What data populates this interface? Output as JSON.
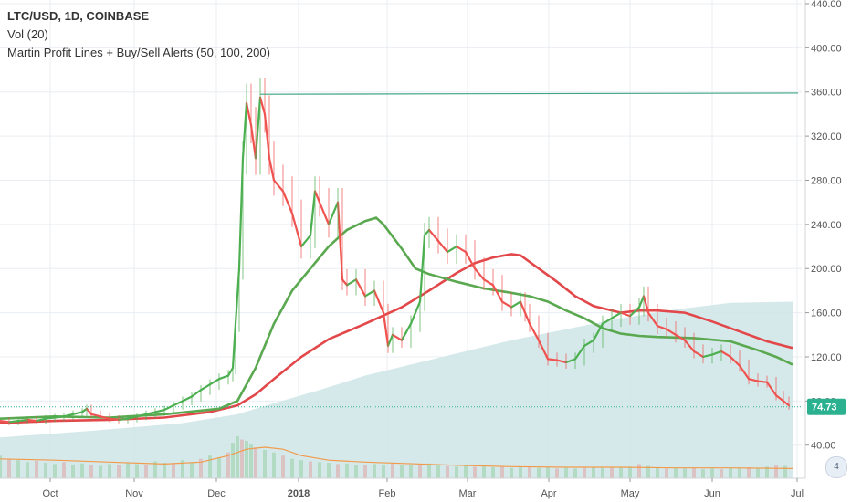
{
  "legend": {
    "symbol": "LTC/USD, 1D, COINBASE",
    "volume": "Vol (20)",
    "indicator": "Martin Profit Lines + Buy/Sell Alerts (50, 100, 200)"
  },
  "badge": "4",
  "colors": {
    "bull": "#4caf50",
    "bear": "#ef5350",
    "ma_fast": "#5aa84f",
    "ma_slow": "#e2474a",
    "area": "#cfe5e6",
    "resistance": "#3fa483",
    "vol_avg": "#f29a4a",
    "last_price_bg": "#2bb190",
    "grid": "#e9edf2"
  },
  "chart_data": {
    "type": "candlestick",
    "title": "LTC/USD, 1D, COINBASE",
    "ylim": [
      10,
      440
    ],
    "y_ticks": [
      40,
      80,
      120,
      160,
      200,
      240,
      280,
      320,
      360,
      400,
      440
    ],
    "y_tick_labels": [
      "40.00",
      "80.00",
      "120.00",
      "160.00",
      "200.00",
      "240.00",
      "280.00",
      "320.00",
      "360.00",
      "400.00",
      "440.00"
    ],
    "x_tick_labels": [
      "Oct",
      "Nov",
      "Dec",
      "2018",
      "Feb",
      "Mar",
      "Apr",
      "May",
      "Jun",
      "Jul"
    ],
    "last_price": 74.73,
    "last_price_label": "74.73",
    "resistance_level": 358,
    "series": [
      {
        "key": "close",
        "points": [
          [
            0,
            62
          ],
          [
            10,
            61
          ],
          [
            20,
            62
          ],
          [
            30,
            63
          ],
          [
            40,
            62
          ],
          [
            50,
            64
          ],
          [
            60,
            65
          ],
          [
            70,
            66
          ],
          [
            80,
            68
          ],
          [
            90,
            70
          ],
          [
            95,
            73
          ],
          [
            100,
            68
          ],
          [
            110,
            66
          ],
          [
            120,
            64
          ],
          [
            130,
            63
          ],
          [
            140,
            64
          ],
          [
            150,
            66
          ],
          [
            160,
            68
          ],
          [
            170,
            70
          ],
          [
            180,
            72
          ],
          [
            190,
            76
          ],
          [
            200,
            80
          ],
          [
            210,
            84
          ],
          [
            220,
            90
          ],
          [
            230,
            95
          ],
          [
            240,
            100
          ],
          [
            250,
            103
          ],
          [
            255,
            110
          ],
          [
            258,
            150
          ],
          [
            262,
            200
          ],
          [
            266,
            300
          ],
          [
            270,
            350
          ],
          [
            275,
            330
          ],
          [
            280,
            300
          ],
          [
            285,
            355
          ],
          [
            290,
            340
          ],
          [
            295,
            300
          ],
          [
            300,
            280
          ],
          [
            310,
            270
          ],
          [
            320,
            250
          ],
          [
            330,
            220
          ],
          [
            340,
            230
          ],
          [
            345,
            270
          ],
          [
            350,
            260
          ],
          [
            360,
            240
          ],
          [
            370,
            260
          ],
          [
            375,
            190
          ],
          [
            380,
            185
          ],
          [
            390,
            190
          ],
          [
            400,
            175
          ],
          [
            410,
            180
          ],
          [
            420,
            160
          ],
          [
            425,
            130
          ],
          [
            430,
            140
          ],
          [
            440,
            135
          ],
          [
            450,
            150
          ],
          [
            460,
            170
          ],
          [
            465,
            230
          ],
          [
            470,
            235
          ],
          [
            480,
            225
          ],
          [
            490,
            215
          ],
          [
            500,
            220
          ],
          [
            510,
            215
          ],
          [
            520,
            200
          ],
          [
            530,
            190
          ],
          [
            540,
            185
          ],
          [
            550,
            170
          ],
          [
            560,
            165
          ],
          [
            570,
            170
          ],
          [
            575,
            160
          ],
          [
            580,
            150
          ],
          [
            590,
            135
          ],
          [
            600,
            118
          ],
          [
            610,
            117
          ],
          [
            620,
            115
          ],
          [
            630,
            118
          ],
          [
            640,
            130
          ],
          [
            650,
            135
          ],
          [
            660,
            150
          ],
          [
            670,
            155
          ],
          [
            680,
            160
          ],
          [
            690,
            157
          ],
          [
            700,
            165
          ],
          [
            705,
            175
          ],
          [
            710,
            160
          ],
          [
            720,
            148
          ],
          [
            730,
            145
          ],
          [
            740,
            140
          ],
          [
            750,
            135
          ],
          [
            760,
            125
          ],
          [
            770,
            120
          ],
          [
            780,
            122
          ],
          [
            790,
            125
          ],
          [
            800,
            120
          ],
          [
            810,
            112
          ],
          [
            820,
            100
          ],
          [
            830,
            98
          ],
          [
            840,
            97
          ],
          [
            850,
            85
          ],
          [
            858,
            80
          ],
          [
            864,
            76
          ]
        ]
      },
      {
        "key": "ma50",
        "points": [
          [
            0,
            64
          ],
          [
            60,
            66
          ],
          [
            120,
            65
          ],
          [
            180,
            68
          ],
          [
            240,
            73
          ],
          [
            260,
            80
          ],
          [
            280,
            110
          ],
          [
            300,
            150
          ],
          [
            320,
            180
          ],
          [
            340,
            200
          ],
          [
            360,
            220
          ],
          [
            380,
            235
          ],
          [
            400,
            243
          ],
          [
            412,
            246
          ],
          [
            420,
            240
          ],
          [
            440,
            218
          ],
          [
            455,
            200
          ],
          [
            470,
            195
          ],
          [
            500,
            188
          ],
          [
            530,
            182
          ],
          [
            560,
            178
          ],
          [
            580,
            175
          ],
          [
            600,
            170
          ],
          [
            620,
            162
          ],
          [
            640,
            155
          ],
          [
            660,
            146
          ],
          [
            680,
            141
          ],
          [
            700,
            139
          ],
          [
            720,
            138
          ],
          [
            760,
            137
          ],
          [
            800,
            134
          ],
          [
            830,
            126
          ],
          [
            850,
            120
          ],
          [
            868,
            113
          ]
        ]
      },
      {
        "key": "ma100",
        "points": [
          [
            0,
            60
          ],
          [
            60,
            62
          ],
          [
            120,
            63
          ],
          [
            180,
            65
          ],
          [
            230,
            70
          ],
          [
            260,
            76
          ],
          [
            280,
            86
          ],
          [
            300,
            100
          ],
          [
            330,
            120
          ],
          [
            360,
            136
          ],
          [
            400,
            150
          ],
          [
            440,
            165
          ],
          [
            470,
            180
          ],
          [
            500,
            196
          ],
          [
            520,
            205
          ],
          [
            540,
            210
          ],
          [
            560,
            213
          ],
          [
            570,
            212
          ],
          [
            590,
            200
          ],
          [
            610,
            188
          ],
          [
            630,
            175
          ],
          [
            650,
            166
          ],
          [
            680,
            160
          ],
          [
            700,
            162
          ],
          [
            720,
            162
          ],
          [
            750,
            160
          ],
          [
            780,
            152
          ],
          [
            810,
            143
          ],
          [
            840,
            134
          ],
          [
            868,
            128
          ]
        ]
      },
      {
        "key": "area",
        "points": [
          [
            0,
            47
          ],
          [
            100,
            53
          ],
          [
            200,
            60
          ],
          [
            260,
            68
          ],
          [
            300,
            78
          ],
          [
            350,
            90
          ],
          [
            400,
            103
          ],
          [
            450,
            113
          ],
          [
            500,
            123
          ],
          [
            560,
            135
          ],
          [
            620,
            145
          ],
          [
            680,
            155
          ],
          [
            740,
            163
          ],
          [
            800,
            169
          ],
          [
            868,
            170
          ]
        ]
      },
      {
        "key": "volume_avg",
        "points": [
          [
            0,
            30
          ],
          [
            60,
            28
          ],
          [
            120,
            25
          ],
          [
            180,
            22
          ],
          [
            220,
            25
          ],
          [
            250,
            35
          ],
          [
            270,
            45
          ],
          [
            290,
            48
          ],
          [
            310,
            45
          ],
          [
            330,
            35
          ],
          [
            360,
            28
          ],
          [
            400,
            25
          ],
          [
            440,
            23
          ],
          [
            500,
            20
          ],
          [
            560,
            18
          ],
          [
            620,
            17
          ],
          [
            680,
            17
          ],
          [
            740,
            16
          ],
          [
            800,
            16
          ],
          [
            868,
            15
          ]
        ]
      }
    ],
    "volume": [
      [
        0,
        35
      ],
      [
        10,
        30
      ],
      [
        20,
        28
      ],
      [
        30,
        25
      ],
      [
        40,
        27
      ],
      [
        50,
        24
      ],
      [
        60,
        22
      ],
      [
        70,
        25
      ],
      [
        80,
        20
      ],
      [
        90,
        23
      ],
      [
        100,
        21
      ],
      [
        110,
        19
      ],
      [
        120,
        22
      ],
      [
        130,
        20
      ],
      [
        140,
        24
      ],
      [
        150,
        22
      ],
      [
        160,
        21
      ],
      [
        170,
        26
      ],
      [
        180,
        24
      ],
      [
        190,
        22
      ],
      [
        200,
        28
      ],
      [
        210,
        25
      ],
      [
        220,
        30
      ],
      [
        230,
        35
      ],
      [
        240,
        32
      ],
      [
        250,
        40
      ],
      [
        255,
        55
      ],
      [
        260,
        65
      ],
      [
        265,
        60
      ],
      [
        270,
        58
      ],
      [
        275,
        52
      ],
      [
        280,
        48
      ],
      [
        290,
        44
      ],
      [
        300,
        40
      ],
      [
        310,
        35
      ],
      [
        320,
        30
      ],
      [
        330,
        28
      ],
      [
        340,
        26
      ],
      [
        350,
        25
      ],
      [
        360,
        24
      ],
      [
        370,
        22
      ],
      [
        380,
        23
      ],
      [
        390,
        21
      ],
      [
        400,
        20
      ],
      [
        410,
        22
      ],
      [
        420,
        20
      ],
      [
        430,
        24
      ],
      [
        440,
        21
      ],
      [
        450,
        20
      ],
      [
        460,
        22
      ],
      [
        470,
        23
      ],
      [
        480,
        21
      ],
      [
        490,
        19
      ],
      [
        500,
        18
      ],
      [
        510,
        20
      ],
      [
        520,
        18
      ],
      [
        530,
        19
      ],
      [
        540,
        17
      ],
      [
        550,
        18
      ],
      [
        560,
        16
      ],
      [
        570,
        17
      ],
      [
        580,
        18
      ],
      [
        590,
        16
      ],
      [
        600,
        17
      ],
      [
        610,
        15
      ],
      [
        620,
        16
      ],
      [
        630,
        15
      ],
      [
        640,
        16
      ],
      [
        650,
        17
      ],
      [
        660,
        16
      ],
      [
        670,
        17
      ],
      [
        680,
        16
      ],
      [
        690,
        18
      ],
      [
        700,
        22
      ],
      [
        710,
        19
      ],
      [
        720,
        16
      ],
      [
        730,
        15
      ],
      [
        740,
        16
      ],
      [
        750,
        15
      ],
      [
        760,
        16
      ],
      [
        770,
        14
      ],
      [
        780,
        15
      ],
      [
        790,
        14
      ],
      [
        800,
        16
      ],
      [
        810,
        15
      ],
      [
        820,
        17
      ],
      [
        830,
        16
      ],
      [
        840,
        18
      ],
      [
        850,
        20
      ],
      [
        860,
        19
      ]
    ]
  }
}
